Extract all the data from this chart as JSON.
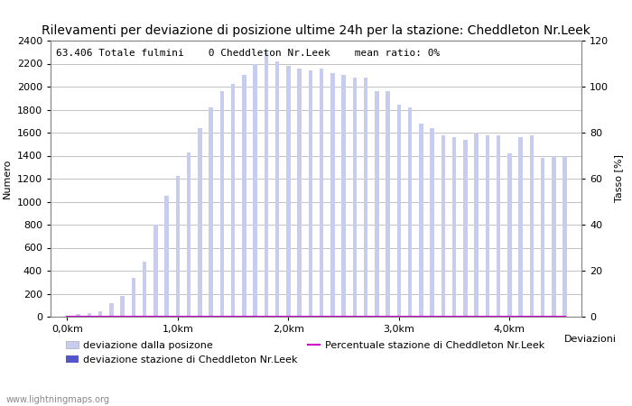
{
  "title": "Rilevamenti per deviazione di posizione ultime 24h per la stazione: Cheddleton Nr.Leek",
  "subtitle": "63.406 Totale fulmini    0 Cheddleton Nr.Leek    mean ratio: 0%",
  "xlabel": "Deviazioni",
  "ylabel_left": "Numero",
  "ylabel_right": "Tasso [%]",
  "watermark": "www.lightningmaps.org",
  "bar_color_light": "#c8ccee",
  "bar_color_dark": "#5555cc",
  "line_color": "#cc00cc",
  "ylim_left": [
    0,
    2400
  ],
  "ylim_right": [
    0,
    120
  ],
  "xlim": [
    -0.15,
    4.65
  ],
  "xtick_labels": [
    "0,0km",
    "1,0km",
    "2,0km",
    "3,0km",
    "4,0km"
  ],
  "xtick_positions": [
    0.0,
    1.0,
    2.0,
    3.0,
    4.0
  ],
  "ytick_left": [
    0,
    200,
    400,
    600,
    800,
    1000,
    1200,
    1400,
    1600,
    1800,
    2000,
    2200,
    2400
  ],
  "ytick_right": [
    0,
    20,
    40,
    60,
    80,
    100,
    120
  ],
  "legend_items": [
    {
      "label": "deviazione dalla posizone",
      "color": "#c8ccee",
      "type": "bar"
    },
    {
      "label": "deviazione stazione di Cheddleton Nr.Leek",
      "color": "#5555cc",
      "type": "bar"
    },
    {
      "label": "Percentuale stazione di Cheddleton Nr.Leek",
      "color": "#cc00cc",
      "type": "line"
    }
  ],
  "bar_positions": [
    0.0,
    0.1,
    0.2,
    0.3,
    0.4,
    0.5,
    0.6,
    0.7,
    0.8,
    0.9,
    1.0,
    1.1,
    1.2,
    1.3,
    1.4,
    1.5,
    1.6,
    1.7,
    1.8,
    1.9,
    2.0,
    2.1,
    2.2,
    2.3,
    2.4,
    2.5,
    2.6,
    2.7,
    2.8,
    2.9,
    3.0,
    3.1,
    3.2,
    3.3,
    3.4,
    3.5,
    3.6,
    3.7,
    3.8,
    3.9,
    4.0,
    4.1,
    4.2,
    4.3,
    4.4,
    4.5
  ],
  "bar_heights": [
    10,
    20,
    30,
    50,
    120,
    180,
    340,
    480,
    800,
    1050,
    1220,
    1430,
    1640,
    1820,
    1960,
    2020,
    2100,
    2200,
    2300,
    2220,
    2180,
    2160,
    2140,
    2160,
    2120,
    2100,
    2080,
    2080,
    1960,
    1960,
    1840,
    1820,
    1680,
    1640,
    1580,
    1560,
    1540,
    1600,
    1580,
    1580,
    1420,
    1560,
    1580,
    1380,
    1400,
    1400
  ],
  "dark_bar_heights": [
    0,
    0,
    0,
    0,
    0,
    0,
    0,
    0,
    0,
    0,
    0,
    0,
    0,
    0,
    0,
    0,
    0,
    0,
    0,
    0,
    0,
    0,
    0,
    0,
    0,
    0,
    0,
    0,
    0,
    0,
    0,
    0,
    0,
    0,
    0,
    0,
    0,
    0,
    0,
    0,
    0,
    0,
    0,
    0,
    0,
    0
  ],
  "line_values": [
    0,
    0,
    0,
    0,
    0,
    0,
    0,
    0,
    0,
    0,
    0,
    0,
    0,
    0,
    0,
    0,
    0,
    0,
    0,
    0,
    0,
    0,
    0,
    0,
    0,
    0,
    0,
    0,
    0,
    0,
    0,
    0,
    0,
    0,
    0,
    0,
    0,
    0,
    0,
    0,
    0,
    0,
    0,
    0,
    0,
    0
  ],
  "background_color": "#ffffff",
  "grid_color": "#aaaaaa",
  "title_fontsize": 10,
  "subtitle_fontsize": 8,
  "axis_fontsize": 8,
  "tick_fontsize": 8,
  "legend_fontsize": 8
}
